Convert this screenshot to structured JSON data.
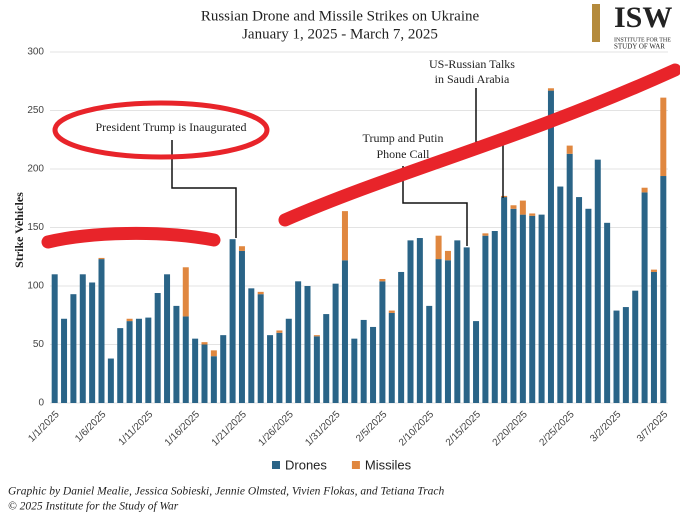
{
  "chart_data": {
    "type": "stacked_bar",
    "title": "Russian Drone and Missile Strikes on Ukraine",
    "subtitle": "January 1, 2025 - March 7, 2025",
    "y_label": "Strike Vehicles",
    "logo": {
      "mark": "ISW",
      "line1": "INSTITUTE FOR THE",
      "line2": "STUDY OF WAR"
    },
    "categories": [
      "1/1/2025",
      null,
      null,
      null,
      null,
      "1/6/2025",
      null,
      null,
      null,
      null,
      "1/11/2025",
      null,
      null,
      null,
      null,
      "1/16/2025",
      null,
      null,
      null,
      null,
      "1/21/2025",
      null,
      null,
      null,
      null,
      "1/26/2025",
      null,
      null,
      null,
      null,
      "1/31/2025",
      null,
      null,
      null,
      null,
      "2/5/2025",
      null,
      null,
      null,
      null,
      "2/10/2025",
      null,
      null,
      null,
      null,
      "2/15/2025",
      null,
      null,
      null,
      null,
      "2/20/2025",
      null,
      null,
      null,
      null,
      "2/25/2025",
      null,
      null,
      null,
      null,
      "3/2/2025",
      null,
      null,
      null,
      null,
      "3/7/2025"
    ],
    "series": [
      {
        "name": "Drones",
        "color": "#2a6487",
        "values": [
          110,
          72,
          93,
          110,
          103,
          123,
          38,
          64,
          70,
          72,
          73,
          94,
          110,
          83,
          74,
          55,
          50,
          40,
          58,
          140,
          130,
          98,
          93,
          58,
          60,
          72,
          104,
          100,
          57,
          76,
          102,
          122,
          55,
          71,
          65,
          104,
          77,
          112,
          139,
          141,
          83,
          123,
          122,
          139,
          133,
          70,
          143,
          147,
          176,
          166,
          161,
          160,
          161,
          267,
          185,
          213,
          176,
          166,
          208,
          154,
          79,
          82,
          96,
          180,
          112,
          194
        ]
      },
      {
        "name": "Missiles",
        "color": "#e0873f",
        "values": [
          0,
          0,
          0,
          0,
          0,
          1,
          0,
          0,
          2,
          0,
          0,
          0,
          0,
          0,
          42,
          0,
          2,
          5,
          0,
          0,
          4,
          0,
          2,
          0,
          2,
          0,
          0,
          0,
          1,
          0,
          0,
          42,
          0,
          0,
          0,
          2,
          2,
          0,
          0,
          0,
          0,
          20,
          8,
          0,
          0,
          0,
          2,
          0,
          1,
          3,
          12,
          2,
          0,
          2,
          0,
          7,
          0,
          0,
          0,
          0,
          0,
          0,
          0,
          4,
          2,
          67
        ]
      }
    ],
    "ylim": [
      0,
      300
    ],
    "yticks": [
      0,
      50,
      100,
      150,
      200,
      250,
      300
    ],
    "grid": true,
    "annotations": [
      [
        "President Trump is Inaugurated"
      ],
      [
        "Trump and Putin",
        "Phone Call"
      ],
      [
        "US-Russian Talks",
        "in Saudi Arabia"
      ]
    ],
    "credits": [
      "Graphic by Daniel Mealie, Jessica Sobieski, Jennie Olmsted, Vivien Flokas, and Tetiana Trach",
      "© 2025 Institute for the Study of War"
    ]
  }
}
